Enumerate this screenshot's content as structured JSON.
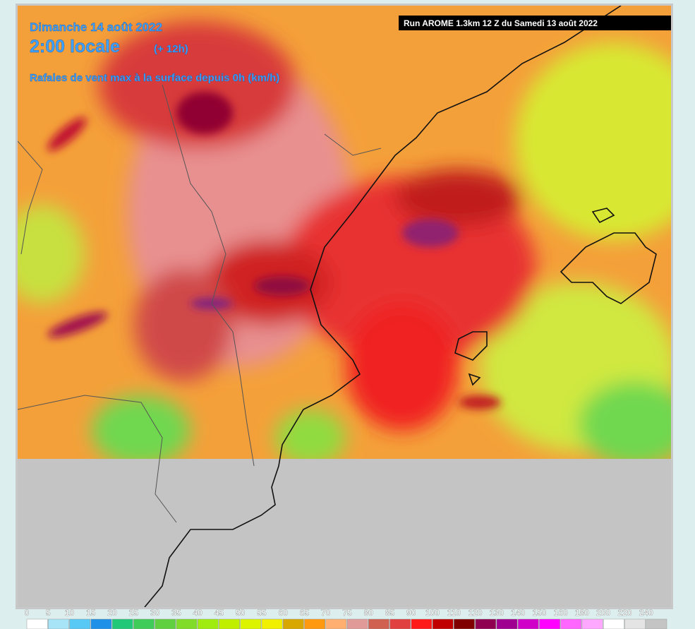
{
  "header": {
    "date": "Dimanche 14 août 2022",
    "time": "2:00 locale",
    "lead": "(+ 12h)",
    "field": "Rafales de vent max à la surface depuis 0h (km/h)",
    "run": "Run AROME 1.3km 12 Z du Samedi 13 août 2022"
  },
  "legend": [
    {
      "label": 0,
      "color": "#ffffff"
    },
    {
      "label": 5,
      "color": "#a8e4f8"
    },
    {
      "label": 10,
      "color": "#58c8f4"
    },
    {
      "label": 15,
      "color": "#1e90e8"
    },
    {
      "label": 20,
      "color": "#20c878"
    },
    {
      "label": 25,
      "color": "#40cc58"
    },
    {
      "label": 30,
      "color": "#60d040"
    },
    {
      "label": 35,
      "color": "#80dc28"
    },
    {
      "label": 40,
      "color": "#a0ec10"
    },
    {
      "label": 45,
      "color": "#c0f000"
    },
    {
      "label": 50,
      "color": "#dcf400"
    },
    {
      "label": 55,
      "color": "#f0f000"
    },
    {
      "label": 60,
      "color": "#d8a800"
    },
    {
      "label": 65,
      "color": "#ff9a10"
    },
    {
      "label": 70,
      "color": "#ffb070"
    },
    {
      "label": 75,
      "color": "#e09a98"
    },
    {
      "label": 80,
      "color": "#d06050"
    },
    {
      "label": 85,
      "color": "#e04040"
    },
    {
      "label": 90,
      "color": "#ff1a1a"
    },
    {
      "label": 100,
      "color": "#c00000"
    },
    {
      "label": 110,
      "color": "#800000"
    },
    {
      "label": 120,
      "color": "#900050"
    },
    {
      "label": 130,
      "color": "#a00090"
    },
    {
      "label": 140,
      "color": "#d000c8"
    },
    {
      "label": 150,
      "color": "#ff00ff"
    },
    {
      "label": 160,
      "color": "#ff66ff"
    },
    {
      "label": 180,
      "color": "#ffa8ff"
    },
    {
      "label": 200,
      "color": "#ffffff"
    },
    {
      "label": 220,
      "color": "#e4e4e4"
    },
    {
      "label": 240,
      "color": "#c4c4c4"
    }
  ]
}
